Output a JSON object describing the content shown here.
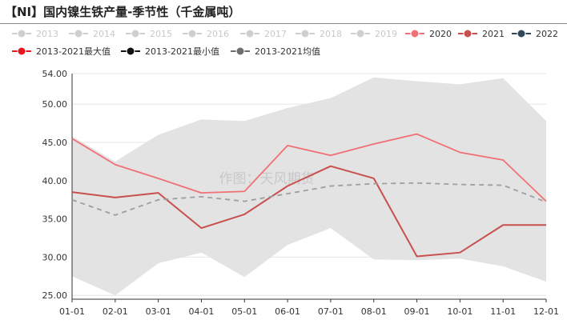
{
  "title": "【NI】国内镍生铁产量-季节性（千金属吨）",
  "watermark": "作图：天风期货",
  "colors": {
    "faded_legend": "#cfcfcf",
    "s2020": "#f07075",
    "s2021": "#c8504e",
    "s2022": "#33475b",
    "max": "#e8161b",
    "min": "#111111",
    "avg": "#6e6e6e",
    "band": "#e3e3e3",
    "avg_line": "#9e9e9e"
  },
  "legend": [
    {
      "label": "2013",
      "color": "#cfcfcf",
      "faded": true
    },
    {
      "label": "2014",
      "color": "#cfcfcf",
      "faded": true
    },
    {
      "label": "2015",
      "color": "#cfcfcf",
      "faded": true
    },
    {
      "label": "2016",
      "color": "#cfcfcf",
      "faded": true
    },
    {
      "label": "2017",
      "color": "#cfcfcf",
      "faded": true
    },
    {
      "label": "2018",
      "color": "#cfcfcf",
      "faded": true
    },
    {
      "label": "2019",
      "color": "#cfcfcf",
      "faded": true
    },
    {
      "label": "2020",
      "color": "#f07075",
      "faded": false
    },
    {
      "label": "2021",
      "color": "#c8504e",
      "faded": false
    },
    {
      "label": "2022",
      "color": "#33475b",
      "faded": false
    },
    {
      "label": "2013-2021最大值",
      "color": "#e8161b",
      "faded": false
    },
    {
      "label": "2013-2021最小值",
      "color": "#111111",
      "faded": false
    },
    {
      "label": "2013-2021均值",
      "color": "#6e6e6e",
      "faded": false
    }
  ],
  "chart_data": {
    "type": "line",
    "categories": [
      "01-01",
      "02-01",
      "03-01",
      "04-01",
      "05-01",
      "06-01",
      "07-01",
      "08-01",
      "09-01",
      "10-01",
      "11-01",
      "12-01"
    ],
    "y_ticks": [
      "25.00",
      "30.00",
      "35.00",
      "40.00",
      "45.00",
      "50.00",
      "54.00"
    ],
    "ylim": [
      24.5,
      54
    ],
    "grid": true,
    "legend_position": "top",
    "band": {
      "max": [
        45.8,
        42.5,
        46.0,
        48.0,
        47.8,
        49.5,
        50.8,
        53.5,
        53.0,
        52.6,
        53.4,
        47.8
      ],
      "min": [
        27.5,
        25.0,
        29.2,
        30.6,
        27.4,
        31.6,
        33.8,
        29.7,
        29.6,
        29.8,
        28.8,
        26.8
      ]
    },
    "series": [
      {
        "name": "2020",
        "values": [
          45.5,
          42.1,
          40.3,
          38.4,
          38.6,
          44.6,
          43.3,
          44.8,
          46.1,
          43.7,
          42.7,
          37.3
        ]
      },
      {
        "name": "2021",
        "values": [
          38.5,
          37.8,
          38.4,
          33.8,
          35.6,
          39.3,
          41.9,
          40.3,
          30.1,
          30.6,
          34.2,
          34.2
        ]
      },
      {
        "name": "2013-2021均值",
        "values": [
          37.5,
          35.5,
          37.5,
          37.9,
          37.3,
          38.3,
          39.3,
          39.6,
          39.7,
          39.5,
          39.4,
          37.2
        ]
      }
    ]
  }
}
